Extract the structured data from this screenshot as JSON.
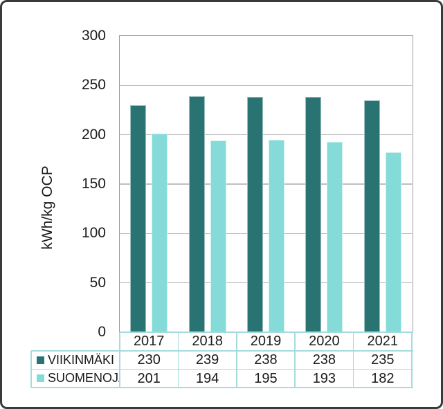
{
  "chart_data": {
    "type": "bar",
    "title": "",
    "ylabel": "kWh/kg OCP",
    "xlabel": "",
    "categories": [
      "2017",
      "2018",
      "2019",
      "2020",
      "2021"
    ],
    "series": [
      {
        "name": "VIIKINMÄKI",
        "color": "#297472",
        "values": [
          230,
          239,
          238,
          238,
          235
        ]
      },
      {
        "name": "SUOMENOJA",
        "color": "#85dbd8",
        "values": [
          201,
          194,
          195,
          193,
          182
        ]
      }
    ],
    "ylim": [
      0,
      300
    ],
    "yticks": [
      0,
      50,
      100,
      150,
      200,
      250,
      300
    ],
    "grid": "horizontal-only",
    "legend_position": "data-table-left",
    "colors": {
      "gridline": "#bfbfbf",
      "plot_border": "#9a9a9a",
      "table_border": "#a5dbdd",
      "text": "#1a1a1a",
      "frame_border": "#3a3a3a",
      "background": "#ffffff"
    }
  }
}
